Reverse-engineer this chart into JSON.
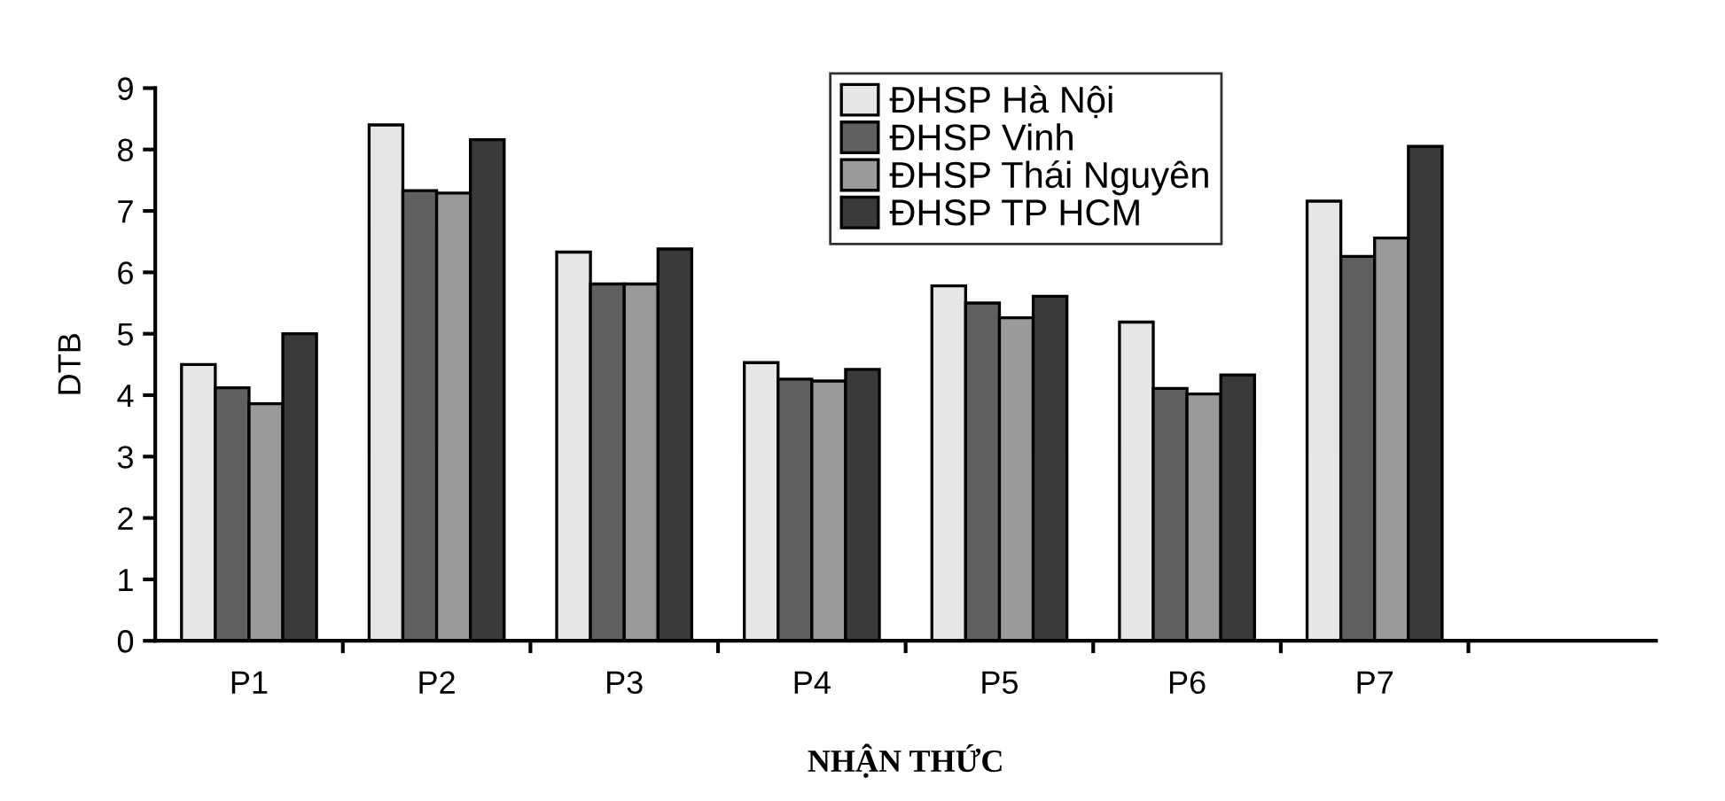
{
  "chart_data": {
    "type": "bar",
    "categories": [
      "P1",
      "P2",
      "P3",
      "P4",
      "P5",
      "P6",
      "P7",
      null
    ],
    "series": [
      {
        "name": "ĐHSP Hà Nội",
        "color": "#e6e6e6",
        "values": [
          4.5,
          8.4,
          6.33,
          4.53,
          5.78,
          5.19,
          7.16,
          null
        ]
      },
      {
        "name": "ĐHSP Vinh",
        "color": "#606060",
        "values": [
          4.12,
          7.33,
          5.81,
          4.26,
          5.5,
          4.11,
          6.26,
          null
        ]
      },
      {
        "name": "ĐHSP Thái Nguyên",
        "color": "#9a9a9a",
        "values": [
          3.86,
          7.29,
          5.81,
          4.23,
          5.26,
          4.02,
          6.56,
          null
        ]
      },
      {
        "name": "ĐHSP TP HCM",
        "color": "#3a3a3a",
        "values": [
          5.0,
          8.16,
          6.38,
          4.42,
          5.61,
          4.33,
          8.05,
          null
        ]
      }
    ],
    "ylim": [
      0,
      9
    ],
    "yticks": [
      0,
      1,
      2,
      3,
      4,
      5,
      6,
      7,
      8,
      9
    ],
    "ylabel": "DTB",
    "xlabel": "NHẬN THỨC",
    "grid": false,
    "legend": "top right"
  }
}
